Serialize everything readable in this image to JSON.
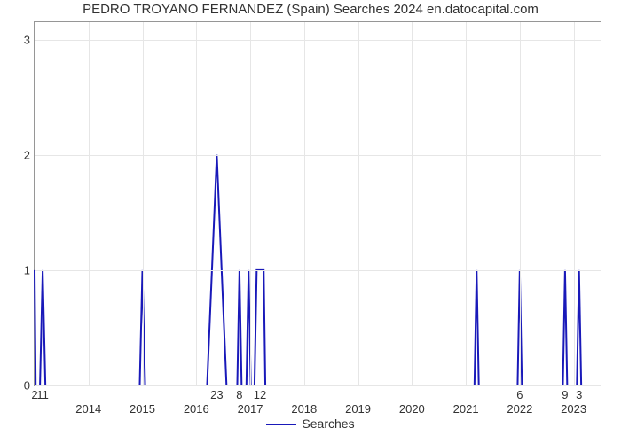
{
  "chart": {
    "type": "line",
    "title": "PEDRO TROYANO FERNANDEZ (Spain) Searches 2024 en.datocapital.com",
    "title_fontsize": 15,
    "title_color": "#323232",
    "background_color": "#ffffff",
    "plot_border_color": "#969696",
    "grid_color": "#e6e6e6",
    "line_color": "#1919b9",
    "line_width": 2,
    "ylim": [
      0,
      3.15
    ],
    "ytick_step": 1,
    "yticks": [
      0,
      1,
      2,
      3
    ],
    "x_range_start": 2013.0,
    "x_range_end": 2023.5,
    "xticks": [
      2014,
      2015,
      2016,
      2017,
      2018,
      2019,
      2020,
      2021,
      2022,
      2023
    ],
    "legend_label": "Searches",
    "series": [
      [
        2013.0,
        1.0
      ],
      [
        2013.02,
        0.0
      ],
      [
        2013.1,
        0.0
      ],
      [
        2013.15,
        1.0
      ],
      [
        2013.2,
        0.0
      ],
      [
        2014.95,
        0.0
      ],
      [
        2015.0,
        1.0
      ],
      [
        2015.05,
        0.0
      ],
      [
        2016.2,
        0.0
      ],
      [
        2016.38,
        2.0
      ],
      [
        2016.56,
        0.0
      ],
      [
        2016.76,
        0.0
      ],
      [
        2016.8,
        1.0
      ],
      [
        2016.84,
        0.0
      ],
      [
        2016.93,
        0.0
      ],
      [
        2016.97,
        1.0
      ],
      [
        2017.01,
        0.0
      ],
      [
        2017.08,
        0.0
      ],
      [
        2017.12,
        1.0
      ],
      [
        2017.25,
        1.0
      ],
      [
        2017.28,
        0.0
      ],
      [
        2021.16,
        0.0
      ],
      [
        2021.2,
        1.0
      ],
      [
        2021.24,
        0.0
      ],
      [
        2021.96,
        0.0
      ],
      [
        2022.0,
        1.0
      ],
      [
        2022.04,
        0.0
      ],
      [
        2022.8,
        0.0
      ],
      [
        2022.84,
        1.0
      ],
      [
        2022.88,
        0.0
      ],
      [
        2023.06,
        0.0
      ],
      [
        2023.1,
        1.0
      ],
      [
        2023.14,
        0.0
      ]
    ],
    "peak_labels": [
      {
        "x": 2013.0,
        "text": "2"
      },
      {
        "x": 2013.15,
        "text": "11"
      },
      {
        "x": 2016.38,
        "text": "23"
      },
      {
        "x": 2016.8,
        "text": "8"
      },
      {
        "x": 2017.18,
        "text": "12"
      },
      {
        "x": 2022.0,
        "text": "6"
      },
      {
        "x": 2022.84,
        "text": "9"
      },
      {
        "x": 2023.1,
        "text": "3"
      }
    ]
  }
}
